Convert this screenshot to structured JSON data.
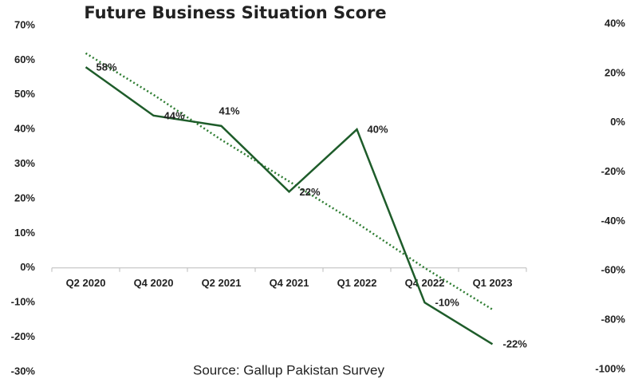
{
  "chart_data": {
    "type": "line",
    "title": "Future Business Situation Score",
    "source": "Source: Gallup Pakistan Survey",
    "categories": [
      "Q2 2020",
      "Q4 2020",
      "Q2 2021",
      "Q4 2021",
      "Q1 2022",
      "Q4 2022",
      "Q1 2023"
    ],
    "series": [
      {
        "color": "#1e5c2a",
        "style": "solid",
        "values": [
          58,
          44,
          41,
          22,
          40,
          -10,
          -22
        ],
        "value_labels": [
          "58%",
          "44%",
          "41%",
          "22%",
          "40%",
          "-10%",
          "-22%"
        ]
      },
      {
        "color": "#2e7d32",
        "style": "dotted",
        "values": [
          62,
          50,
          37,
          25,
          13,
          0,
          -12
        ]
      }
    ],
    "ylim": [
      -30,
      70
    ],
    "yticks": [
      {
        "value": -30,
        "label": "-30%"
      },
      {
        "value": -20,
        "label": "-20%"
      },
      {
        "value": -10,
        "label": "-10%"
      },
      {
        "value": 0,
        "label": "0%"
      },
      {
        "value": 10,
        "label": "10%"
      },
      {
        "value": 20,
        "label": "20%"
      },
      {
        "value": 30,
        "label": "30%"
      },
      {
        "value": 40,
        "label": "40%"
      },
      {
        "value": 50,
        "label": "50%"
      },
      {
        "value": 60,
        "label": "60%"
      },
      {
        "value": 70,
        "label": "70%"
      }
    ],
    "y2lim": [
      -100,
      40
    ],
    "y2ticks": [
      {
        "value": -100,
        "label": "-100%"
      },
      {
        "value": -80,
        "label": "-80%"
      },
      {
        "value": -60,
        "label": "-60%"
      },
      {
        "value": -40,
        "label": "-40%"
      },
      {
        "value": -20,
        "label": "-20%"
      },
      {
        "value": 0,
        "label": "0%"
      },
      {
        "value": 20,
        "label": "20%"
      },
      {
        "value": 40,
        "label": "40%"
      }
    ],
    "grid": false
  }
}
